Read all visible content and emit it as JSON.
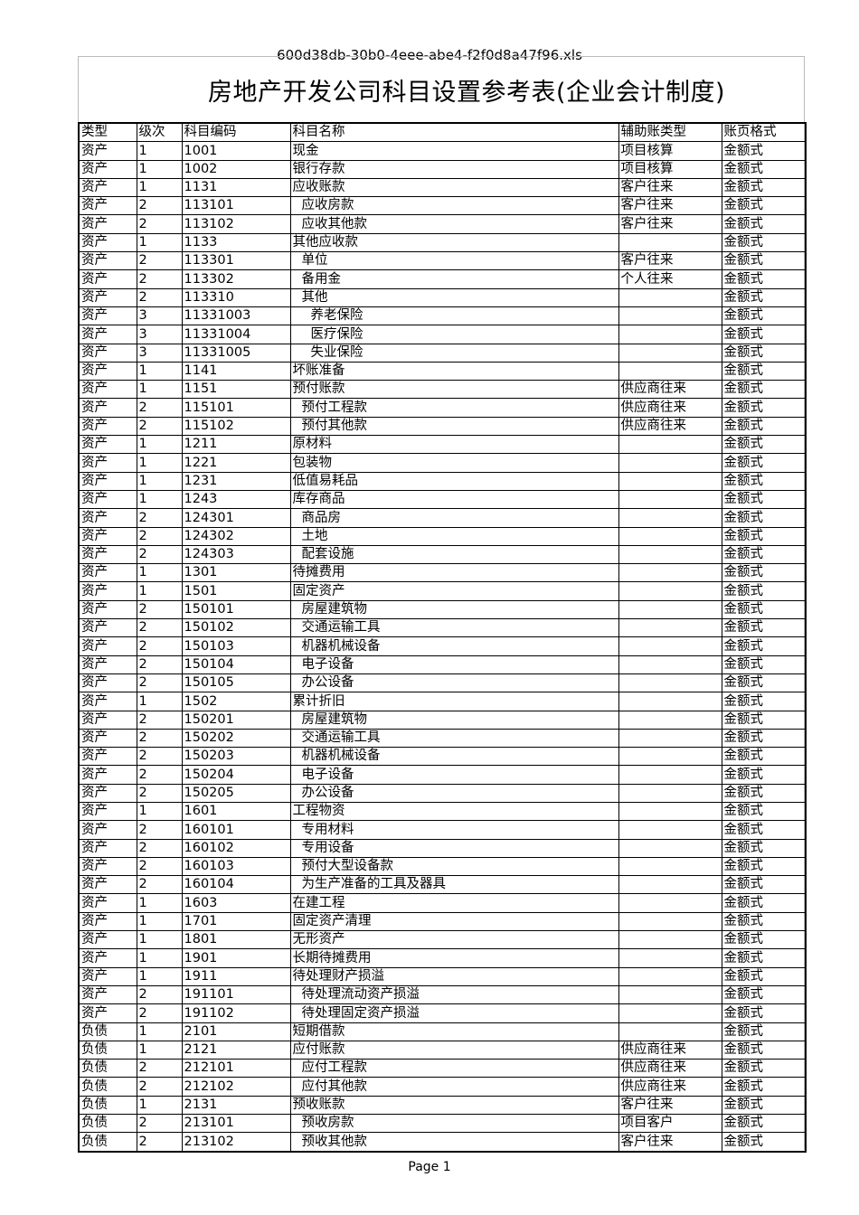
{
  "file_name": "600d38db-30b0-4eee-abe4-f2f0d8a47f96.xls",
  "title": "房地产开发公司科目设置参考表(企业会计制度)",
  "headers": [
    "类型",
    "级次",
    "科目编码",
    "科目名称",
    "辅助账类型",
    "账页格式"
  ],
  "rows": [
    [
      "资产",
      "1",
      "1001",
      "现金",
      "项目核算",
      "金额式"
    ],
    [
      "资产",
      "1",
      "1002",
      "银行存款",
      "项目核算",
      "金额式"
    ],
    [
      "资产",
      "1",
      "1131",
      "应收账款",
      "客户往来",
      "金额式"
    ],
    [
      "资产",
      "2",
      "113101",
      "应收房款",
      "客户往来",
      "金额式"
    ],
    [
      "资产",
      "2",
      "113102",
      "应收其他款",
      "客户往来",
      "金额式"
    ],
    [
      "资产",
      "1",
      "1133",
      "其他应收款",
      "",
      "金额式"
    ],
    [
      "资产",
      "2",
      "113301",
      "单位",
      "客户往来",
      "金额式"
    ],
    [
      "资产",
      "2",
      "113302",
      "备用金",
      "个人往来",
      "金额式"
    ],
    [
      "资产",
      "2",
      "113310",
      "其他",
      "",
      "金额式"
    ],
    [
      "资产",
      "3",
      "11331003",
      "养老保险",
      "",
      "金额式"
    ],
    [
      "资产",
      "3",
      "11331004",
      "医疗保险",
      "",
      "金额式"
    ],
    [
      "资产",
      "3",
      "11331005",
      "失业保险",
      "",
      "金额式"
    ],
    [
      "资产",
      "1",
      "1141",
      "坏账准备",
      "",
      "金额式"
    ],
    [
      "资产",
      "1",
      "1151",
      "预付账款",
      "供应商往来",
      "金额式"
    ],
    [
      "资产",
      "2",
      "115101",
      "预付工程款",
      "供应商往来",
      "金额式"
    ],
    [
      "资产",
      "2",
      "115102",
      "预付其他款",
      "供应商往来",
      "金额式"
    ],
    [
      "资产",
      "1",
      "1211",
      "原材料",
      "",
      "金额式"
    ],
    [
      "资产",
      "1",
      "1221",
      "包装物",
      "",
      "金额式"
    ],
    [
      "资产",
      "1",
      "1231",
      "低值易耗品",
      "",
      "金额式"
    ],
    [
      "资产",
      "1",
      "1243",
      "库存商品",
      "",
      "金额式"
    ],
    [
      "资产",
      "2",
      "124301",
      "商品房",
      "",
      "金额式"
    ],
    [
      "资产",
      "2",
      "124302",
      "土地",
      "",
      "金额式"
    ],
    [
      "资产",
      "2",
      "124303",
      "配套设施",
      "",
      "金额式"
    ],
    [
      "资产",
      "1",
      "1301",
      "待摊费用",
      "",
      "金额式"
    ],
    [
      "资产",
      "1",
      "1501",
      "固定资产",
      "",
      "金额式"
    ],
    [
      "资产",
      "2",
      "150101",
      "房屋建筑物",
      "",
      "金额式"
    ],
    [
      "资产",
      "2",
      "150102",
      "交通运输工具",
      "",
      "金额式"
    ],
    [
      "资产",
      "2",
      "150103",
      "机器机械设备",
      "",
      "金额式"
    ],
    [
      "资产",
      "2",
      "150104",
      "电子设备",
      "",
      "金额式"
    ],
    [
      "资产",
      "2",
      "150105",
      "办公设备",
      "",
      "金额式"
    ],
    [
      "资产",
      "1",
      "1502",
      "累计折旧",
      "",
      "金额式"
    ],
    [
      "资产",
      "2",
      "150201",
      "房屋建筑物",
      "",
      "金额式"
    ],
    [
      "资产",
      "2",
      "150202",
      "交通运输工具",
      "",
      "金额式"
    ],
    [
      "资产",
      "2",
      "150203",
      "机器机械设备",
      "",
      "金额式"
    ],
    [
      "资产",
      "2",
      "150204",
      "电子设备",
      "",
      "金额式"
    ],
    [
      "资产",
      "2",
      "150205",
      "办公设备",
      "",
      "金额式"
    ],
    [
      "资产",
      "1",
      "1601",
      "工程物资",
      "",
      "金额式"
    ],
    [
      "资产",
      "2",
      "160101",
      "专用材料",
      "",
      "金额式"
    ],
    [
      "资产",
      "2",
      "160102",
      "专用设备",
      "",
      "金额式"
    ],
    [
      "资产",
      "2",
      "160103",
      "预付大型设备款",
      "",
      "金额式"
    ],
    [
      "资产",
      "2",
      "160104",
      "为生产准备的工具及器具",
      "",
      "金额式"
    ],
    [
      "资产",
      "1",
      "1603",
      "在建工程",
      "",
      "金额式"
    ],
    [
      "资产",
      "1",
      "1701",
      "固定资产清理",
      "",
      "金额式"
    ],
    [
      "资产",
      "1",
      "1801",
      "无形资产",
      "",
      "金额式"
    ],
    [
      "资产",
      "1",
      "1901",
      "长期待摊费用",
      "",
      "金额式"
    ],
    [
      "资产",
      "1",
      "1911",
      "待处理财产损溢",
      "",
      "金额式"
    ],
    [
      "资产",
      "2",
      "191101",
      "待处理流动资产损溢",
      "",
      "金额式"
    ],
    [
      "资产",
      "2",
      "191102",
      "待处理固定资产损溢",
      "",
      "金额式"
    ],
    [
      "负债",
      "1",
      "2101",
      "短期借款",
      "",
      "金额式"
    ],
    [
      "负债",
      "1",
      "2121",
      "应付账款",
      "供应商往来",
      "金额式"
    ],
    [
      "负债",
      "2",
      "212101",
      "应付工程款",
      "供应商往来",
      "金额式"
    ],
    [
      "负债",
      "2",
      "212102",
      "应付其他款",
      "供应商往来",
      "金额式"
    ],
    [
      "负债",
      "1",
      "2131",
      "预收账款",
      "客户往来",
      "金额式"
    ],
    [
      "负债",
      "2",
      "213101",
      "预收房款",
      "项目客户",
      "金额式"
    ],
    [
      "负债",
      "2",
      "213102",
      "预收其他款",
      "客户往来",
      "金额式"
    ]
  ],
  "page_label": "Page 1"
}
